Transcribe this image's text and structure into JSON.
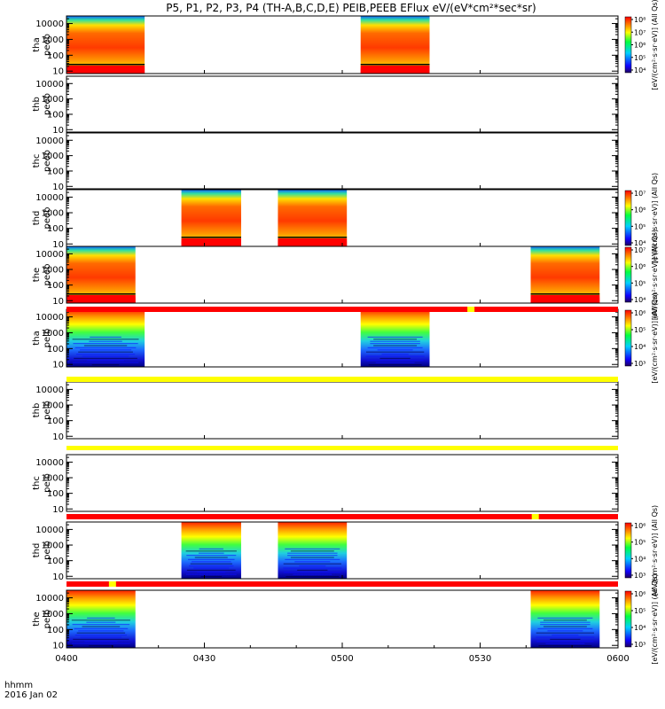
{
  "title": "P5, P1, P2, P3, P4 (TH-A,B,C,D,E) PEIB,PEEB EFlux eV/(eV*cm²*sec*sr)",
  "footer": {
    "time_label": "hhmm",
    "date_label": "2016 Jan 02"
  },
  "colors": {
    "red": "#ff0000",
    "yellow": "#ffff00",
    "black": "#000000"
  },
  "chart_data": {
    "type": "heatmap",
    "x_axis": {
      "label": "hhmm",
      "range": [
        "0400",
        "0600"
      ],
      "ticks": [
        "0400",
        "0430",
        "0500",
        "0530",
        "0600"
      ]
    },
    "y_axis": {
      "scale": "log",
      "range": [
        7,
        30000
      ],
      "ticks": [
        "10",
        "100",
        "1000",
        "10000"
      ],
      "unit": "eV"
    },
    "color_scale": "rainbow (blue → green → yellow → red)",
    "panels": [
      {
        "id": "tha-peeb",
        "ylabel_line1": "tha",
        "ylabel_line2": "peeb",
        "species": "electron",
        "data_intervals": [
          [
            "0400",
            "0417"
          ],
          [
            "0504",
            "0519"
          ]
        ],
        "colorbar": {
          "ticks": [
            "10⁴",
            "10⁵",
            "10⁶",
            "10⁷",
            "10⁸"
          ],
          "label": "[eV/(cm²·s·sr·eV)] (All Qs)"
        }
      },
      {
        "id": "thb-peeb",
        "ylabel_line1": "thb",
        "ylabel_line2": "peeb",
        "species": "electron",
        "data_intervals": []
      },
      {
        "id": "thc-peeb",
        "ylabel_line1": "thc",
        "ylabel_line2": "peeb",
        "species": "electron",
        "data_intervals": []
      },
      {
        "id": "thd-peeb",
        "ylabel_line1": "thd",
        "ylabel_line2": "peeb",
        "species": "electron",
        "data_intervals": [
          [
            "0425",
            "0438"
          ],
          [
            "0446",
            "0501"
          ]
        ],
        "colorbar": {
          "ticks": [
            "10⁴",
            "10⁵",
            "10⁶",
            "10⁷"
          ],
          "label": "[eV/(cm²·s·sr·eV)] (All Qs)"
        }
      },
      {
        "id": "the-peeb",
        "ylabel_line1": "the",
        "ylabel_line2": "peeb",
        "species": "electron",
        "data_intervals": [
          [
            "0400",
            "0415"
          ],
          [
            "0541",
            "0556"
          ]
        ],
        "colorbar": {
          "ticks": [
            "10⁴",
            "10⁵",
            "10⁶",
            "10⁷"
          ],
          "label": "[eV/(cm²·s·sr·eV)] (All Qs)"
        }
      },
      {
        "id": "tha-peib",
        "ylabel_line1": "tha",
        "ylabel_line2": "peib",
        "species": "ion",
        "data_intervals": [
          [
            "0400",
            "0417"
          ],
          [
            "0504",
            "0519"
          ]
        ],
        "colorbar": {
          "ticks": [
            "10³",
            "10⁴",
            "10⁵",
            "10⁶"
          ],
          "label": "[eV/(cm²·s·sr·eV)] (All Qs)"
        }
      },
      {
        "id": "thb-peib",
        "ylabel_line1": "thb",
        "ylabel_line2": "peib",
        "species": "ion",
        "data_intervals": []
      },
      {
        "id": "thc-peib",
        "ylabel_line1": "thc",
        "ylabel_line2": "peib",
        "species": "ion",
        "data_intervals": []
      },
      {
        "id": "thd-peib",
        "ylabel_line1": "thd",
        "ylabel_line2": "peib",
        "species": "ion",
        "data_intervals": [
          [
            "0425",
            "0438"
          ],
          [
            "0446",
            "0501"
          ]
        ],
        "colorbar": {
          "ticks": [
            "10³",
            "10⁴",
            "10⁵",
            "10⁶"
          ],
          "label": "[eV/(cm²·s·sr·eV)] (All Qs)"
        }
      },
      {
        "id": "the-peib",
        "ylabel_line1": "the",
        "ylabel_line2": "peib",
        "species": "ion",
        "data_intervals": [
          [
            "0400",
            "0415"
          ],
          [
            "0541",
            "0556"
          ]
        ],
        "colorbar": {
          "ticks": [
            "10³",
            "10⁴",
            "10⁵",
            "10⁶"
          ],
          "label": "[eV/(cm²·s·sr·eV)] (All Qs)"
        }
      }
    ],
    "status_bars": [
      {
        "after_panel": "the-peeb",
        "color": "red",
        "markers": [
          {
            "time": "0528",
            "color": "yellow"
          }
        ]
      },
      {
        "after_panel": "tha-peib",
        "color": "yellow",
        "markers": []
      },
      {
        "after_panel": "thb-peib",
        "color": "yellow",
        "markers": []
      },
      {
        "after_panel": "thc-peib",
        "color": "red",
        "markers": [
          {
            "time": "0542",
            "color": "yellow"
          }
        ]
      },
      {
        "after_panel": "thd-peib",
        "color": "red",
        "markers": [
          {
            "time": "0410",
            "color": "yellow"
          }
        ]
      }
    ]
  }
}
